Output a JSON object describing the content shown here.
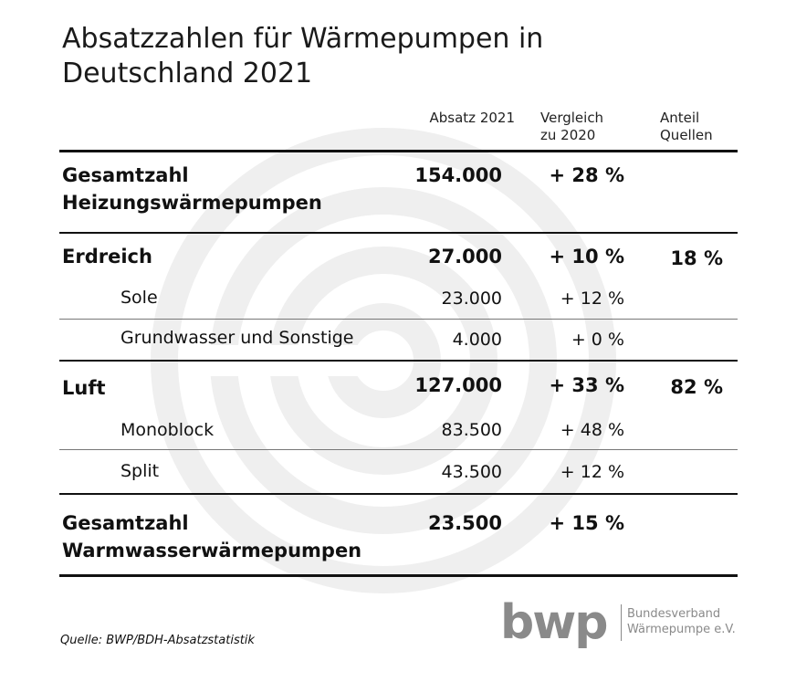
{
  "title": "Absatzzahlen für Wärmepumpen in Deutschland 2021",
  "title_lines": [
    "Absatzzahlen für Wärmepumpen in",
    "Deutschland 2021"
  ],
  "columns": {
    "absatz": "Absatz 2021",
    "vergleich": [
      "Vergleich",
      "zu 2020"
    ],
    "anteil": [
      "Anteil",
      "Quellen"
    ]
  },
  "rows": [
    {
      "label": [
        "Gesamtzahl",
        "Heizungswärmepumpen"
      ],
      "absatz": "154.000",
      "vergleich": "+ 28 %",
      "anteil": ""
    },
    {
      "label": [
        "Erdreich"
      ],
      "absatz": "27.000",
      "vergleich": "+ 10 %",
      "anteil": "18 %"
    },
    {
      "label": [
        "Sole"
      ],
      "absatz": "23.000",
      "vergleich": "+ 12 %",
      "anteil": ""
    },
    {
      "label": [
        "Grundwasser und Sonstige"
      ],
      "absatz": "4.000",
      "vergleich": "+ 0 %",
      "anteil": ""
    },
    {
      "label": [
        "Luft"
      ],
      "absatz": "127.000",
      "vergleich": "+ 33 %",
      "anteil": "82 %"
    },
    {
      "label": [
        "Monoblock"
      ],
      "absatz": "83.500",
      "vergleich": "+ 48 %",
      "anteil": ""
    },
    {
      "label": [
        "Split"
      ],
      "absatz": "43.500",
      "vergleich": "+ 12 %",
      "anteil": ""
    },
    {
      "label": [
        "Gesamtzahl",
        "Warmwasserwärmepumpen"
      ],
      "absatz": "23.500",
      "vergleich": "+ 15 %",
      "anteil": ""
    }
  ],
  "source": "Quelle: BWP/BDH-Absatzstatistik",
  "logo": {
    "mark": "bwp",
    "line1": "Bundesverband",
    "line2": "Wärmepumpe e.V."
  },
  "colors": {
    "text": "#111111",
    "watermark": "#efefef",
    "logo": "#8a8a8a"
  }
}
